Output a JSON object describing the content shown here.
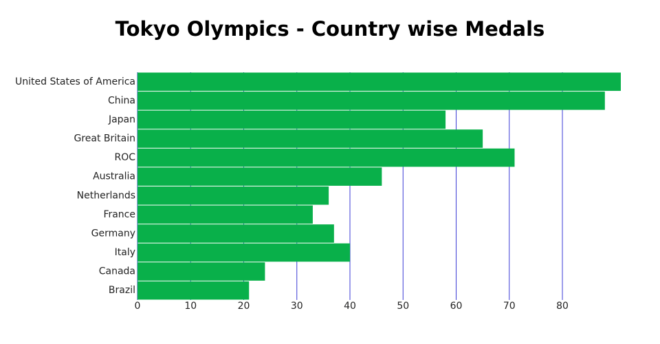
{
  "chart_data": {
    "type": "barh",
    "title": "Tokyo Olympics - Country wise Medals",
    "categories": [
      "United States of America",
      "China",
      "Japan",
      "Great Britain",
      "ROC",
      "Australia",
      "Netherlands",
      "France",
      "Germany",
      "Italy",
      "Canada",
      "Brazil"
    ],
    "values": [
      91,
      88,
      58,
      65,
      71,
      46,
      36,
      33,
      37,
      40,
      24,
      21
    ],
    "color": "#09b04a",
    "grid_color": "#3b3bd6",
    "xlim": [
      0,
      91
    ],
    "xticks": [
      0,
      10,
      20,
      30,
      40,
      50,
      60,
      70,
      80
    ],
    "grid": true
  }
}
